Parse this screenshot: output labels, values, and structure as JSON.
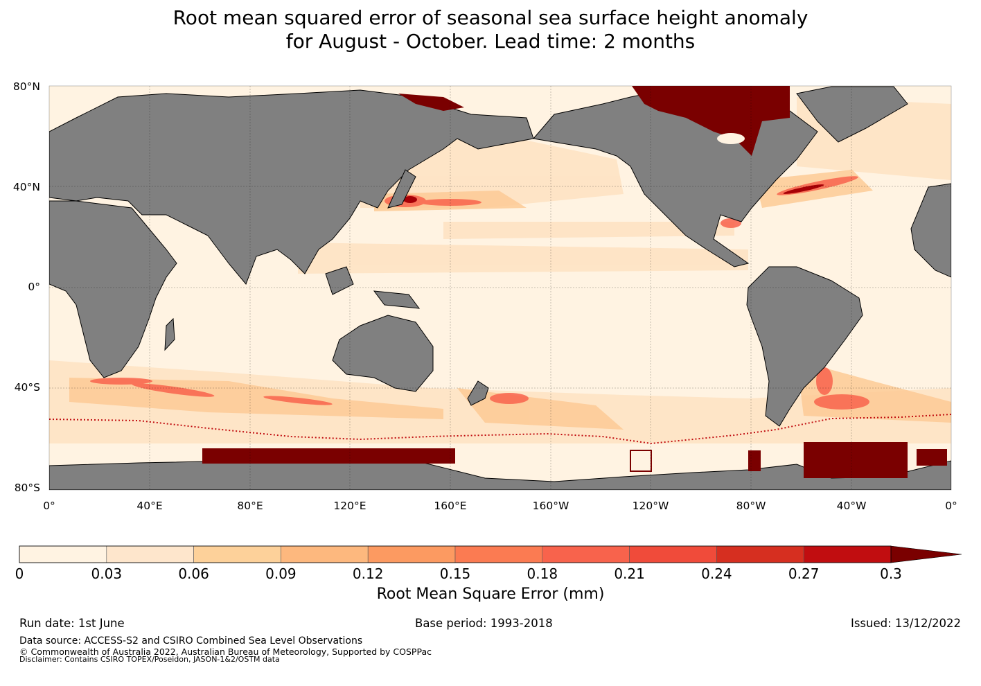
{
  "title": {
    "line1": "Root mean squared error of seasonal sea surface height anomaly",
    "line2": "for August - October. Lead time: 2 months"
  },
  "map": {
    "projection": "equirectangular",
    "lat_range": [
      -80,
      80
    ],
    "lon_range": [
      0,
      360
    ],
    "gridlines": true,
    "lat_labels": [
      "80°N",
      "40°N",
      "0°",
      "40°S",
      "80°S"
    ],
    "lon_labels": [
      "0°",
      "40°E",
      "80°E",
      "120°E",
      "160°E",
      "160°W",
      "120°W",
      "80°W",
      "40°W",
      "0°"
    ],
    "colors": {
      "land": "#808080",
      "ocean_min": "#fff3e2",
      "max": "#7a0000"
    }
  },
  "colorbar": {
    "ticks": [
      "0",
      "0.03",
      "0.06",
      "0.09",
      "0.12",
      "0.15",
      "0.18",
      "0.21",
      "0.24",
      "0.27",
      "0.3"
    ],
    "colors": [
      "#fff3e2",
      "#fee6cc",
      "#fdd19a",
      "#fdb87e",
      "#fc9a61",
      "#fb7b52",
      "#f8634c",
      "#f04b3a",
      "#d62f20",
      "#c10d10",
      "#a70006",
      "#7a0000"
    ],
    "label": "Root Mean Square Error (mm)",
    "extend": "max"
  },
  "footer": {
    "run_date": "Run date: 1st June",
    "base_period": "Base period: 1993-2018",
    "issued": "Issued: 13/12/2022",
    "data_source": "Data source: ACCESS-S2 and CSIRO Combined Sea Level Observations",
    "copyright": "© Commonwealth of Australia 2022, Australian Bureau of Meteorology, Supported by COSPPac",
    "disclaimer": "Disclaimer: Contains CSIRO TOPEX/Poseidon, JASON-1&2/OSTM data"
  }
}
